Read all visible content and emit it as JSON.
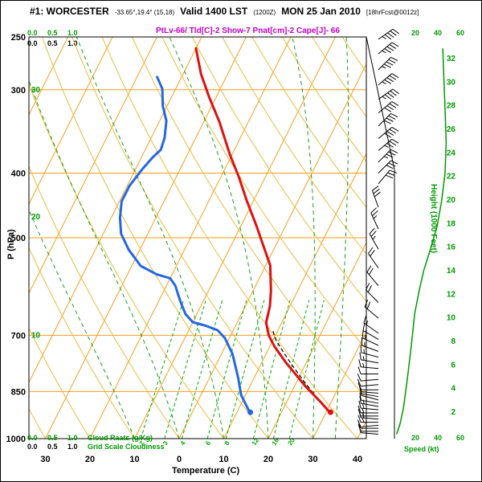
{
  "header": {
    "station_id": "#1: WORCESTER",
    "coords": "-33.65°,19.4° (15,18)",
    "valid_label": "Valid 1400 LST",
    "valid_utc": "(1200Z)",
    "valid_date": "MON 25 Jan 2010",
    "forecast_note": "[18hrFcst@0012z]",
    "indices": "PtLv-66/ Tld[C]-2 Show-7 Pnat[cm]-2 Cape[J]- 66"
  },
  "axes": {
    "pressure_label": "P (hPa)",
    "pressure_ticks": [
      250,
      300,
      400,
      500,
      700,
      850,
      1000
    ],
    "pressure_gridlines": [
      300,
      400,
      500,
      700,
      850
    ],
    "temp_label": "Temperature (C)",
    "temp_ticks": [
      -30,
      -20,
      -10,
      0,
      10,
      20,
      30,
      40
    ],
    "temp_tick_display": [
      "30",
      "20",
      "10",
      "0",
      "10",
      "20",
      "30",
      "40"
    ],
    "height_label": "Height (1000 Feet)",
    "height_ticks": [
      2,
      4,
      6,
      8,
      10,
      12,
      14,
      16,
      18,
      20,
      22,
      24,
      26,
      28,
      30,
      32
    ],
    "left_height_marks": [
      {
        "value": 10,
        "pressure": 700
      },
      {
        "value": 20,
        "pressure": 465
      },
      {
        "value": 30,
        "pressure": 300
      }
    ],
    "speed_label": "Speed (kt)",
    "speed_ticks": [
      "20",
      "40",
      "60"
    ],
    "cloud_scale_ticks": [
      "0.0",
      "0.5",
      "1.0"
    ],
    "cloud_water_label": "Cloud Raats (g/Kg)",
    "cloudiness_label": "Grid Scale Cloudiness"
  },
  "colors": {
    "temperature": "#DD1111",
    "dewpoint": "#2667E0",
    "isotherm": "#F59E1E",
    "dry_adiabat": "#E8BC3F",
    "moist_adiabat": "#1A9E1A",
    "mixing": "#00AA00",
    "speed": "#009900",
    "barb": "#000000"
  },
  "chart_data": {
    "type": "skewt-log-p-sounding",
    "title": "WORCESTER model sounding valid 1400 LST (1200Z) Mon 25 Jan 2010, 18hr forecast",
    "station": {
      "name": "WORCESTER",
      "lat": -33.65,
      "lon": 19.4,
      "grid_point": "(15,18)"
    },
    "pressure_range_hpa": [
      1000,
      250
    ],
    "temp_range_c": [
      -40,
      40
    ],
    "height_range_kft": [
      0,
      34
    ],
    "speed_range_kt": [
      0,
      60
    ],
    "surface": {
      "p": 913,
      "t": 31,
      "td": 13
    },
    "temperature_profile": [
      [
        915,
        31
      ],
      [
        880,
        27.5
      ],
      [
        835,
        22.5
      ],
      [
        770,
        15.5
      ],
      [
        727,
        11
      ],
      [
        700,
        8.5
      ],
      [
        670,
        6.5
      ],
      [
        633,
        5.5
      ],
      [
        600,
        4
      ],
      [
        550,
        1
      ],
      [
        507,
        -3.5
      ],
      [
        480,
        -6.5
      ],
      [
        440,
        -11.5
      ],
      [
        405,
        -16
      ],
      [
        375,
        -20.5
      ],
      [
        335,
        -26.5
      ],
      [
        308,
        -31.5
      ],
      [
        284,
        -36
      ],
      [
        260,
        -40
      ]
    ],
    "dewpoint_profile": [
      [
        915,
        13
      ],
      [
        860,
        9
      ],
      [
        812,
        6.5
      ],
      [
        747,
        2.5
      ],
      [
        707,
        -1
      ],
      [
        688,
        -3.5
      ],
      [
        678,
        -6.5
      ],
      [
        669,
        -10
      ],
      [
        651,
        -12.5
      ],
      [
        624,
        -15
      ],
      [
        607,
        -16.5
      ],
      [
        590,
        -18
      ],
      [
        575,
        -20
      ],
      [
        567,
        -23.5
      ],
      [
        551,
        -28
      ],
      [
        521,
        -32.5
      ],
      [
        493,
        -36
      ],
      [
        467,
        -38
      ],
      [
        441,
        -39.5
      ],
      [
        418,
        -39.5
      ],
      [
        395,
        -38.5
      ],
      [
        379,
        -37.5
      ],
      [
        369,
        -36.5
      ],
      [
        354,
        -37
      ],
      [
        334,
        -38.5
      ],
      [
        317,
        -41
      ],
      [
        299,
        -43
      ],
      [
        287,
        -45.5
      ]
    ],
    "parcel_profile": [
      [
        915,
        31
      ],
      [
        870,
        26.5
      ],
      [
        820,
        21.5
      ],
      [
        775,
        17
      ],
      [
        740,
        13.5
      ],
      [
        710,
        10.5
      ],
      [
        690,
        9
      ]
    ],
    "wind_profile_kt": [
      [
        985,
        275,
        10
      ],
      [
        975,
        270,
        10
      ],
      [
        965,
        270,
        12
      ],
      [
        955,
        265,
        12
      ],
      [
        945,
        270,
        13
      ],
      [
        935,
        275,
        13
      ],
      [
        925,
        270,
        15
      ],
      [
        915,
        270,
        15
      ],
      [
        905,
        275,
        15
      ],
      [
        895,
        280,
        13
      ],
      [
        885,
        280,
        12
      ],
      [
        875,
        285,
        12
      ],
      [
        865,
        280,
        10
      ],
      [
        855,
        275,
        10
      ],
      [
        845,
        270,
        10
      ],
      [
        830,
        265,
        10
      ],
      [
        815,
        265,
        12
      ],
      [
        800,
        270,
        12
      ],
      [
        785,
        275,
        13
      ],
      [
        770,
        280,
        13
      ],
      [
        755,
        285,
        15
      ],
      [
        740,
        290,
        15
      ],
      [
        725,
        295,
        15
      ],
      [
        710,
        300,
        15
      ],
      [
        695,
        305,
        15
      ],
      [
        660,
        310,
        18
      ],
      [
        625,
        315,
        18
      ],
      [
        590,
        320,
        20
      ],
      [
        555,
        325,
        22
      ],
      [
        520,
        330,
        25
      ],
      [
        485,
        335,
        25
      ],
      [
        450,
        340,
        28
      ],
      [
        415,
        40,
        30
      ],
      [
        400,
        45,
        32
      ],
      [
        385,
        45,
        35
      ],
      [
        370,
        50,
        35
      ],
      [
        355,
        50,
        38
      ],
      [
        340,
        45,
        40
      ],
      [
        325,
        50,
        42
      ],
      [
        310,
        55,
        45
      ],
      [
        295,
        50,
        45
      ],
      [
        280,
        45,
        45
      ],
      [
        265,
        50,
        45
      ],
      [
        252,
        55,
        45
      ]
    ],
    "speed_profile_kt": [
      [
        985,
        2
      ],
      [
        950,
        5
      ],
      [
        900,
        8
      ],
      [
        850,
        10
      ],
      [
        800,
        12
      ],
      [
        750,
        14
      ],
      [
        700,
        16
      ],
      [
        650,
        18
      ],
      [
        600,
        22
      ],
      [
        560,
        26
      ],
      [
        520,
        32
      ],
      [
        480,
        38
      ],
      [
        440,
        42
      ],
      [
        400,
        45
      ],
      [
        360,
        46
      ],
      [
        320,
        45
      ],
      [
        290,
        44
      ],
      [
        260,
        43
      ]
    ],
    "isotherm_step_c": 10,
    "dry_adiabat_step_c": 10,
    "moist_adiabats_c": [
      -10,
      0,
      10,
      20,
      30,
      35
    ],
    "mixing_ratios_gkg": [
      2,
      3,
      4,
      6,
      8,
      12,
      16,
      20
    ],
    "grid": "on",
    "legend_position": "none"
  }
}
